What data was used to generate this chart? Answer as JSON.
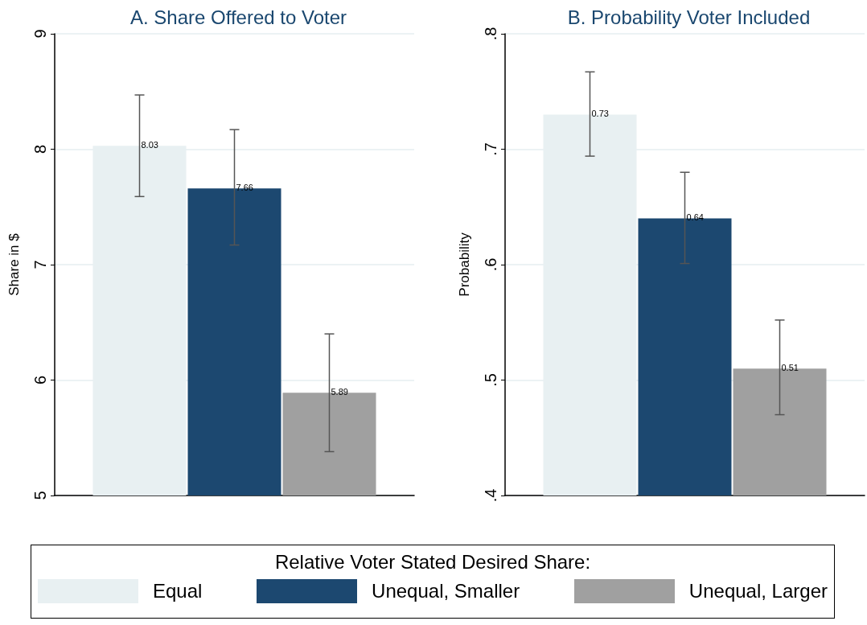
{
  "chart_data": [
    {
      "type": "bar",
      "title": "A. Share Offered to Voter",
      "ylabel": "Share in $",
      "categories": [
        null
      ],
      "series": [
        {
          "name": "Equal",
          "color": "#e8f0f2",
          "values": [
            8.03
          ],
          "errors": [
            [
              7.59,
              8.47
            ]
          ]
        },
        {
          "name": "Unequal, Smaller",
          "color": "#1c4870",
          "values": [
            7.66
          ],
          "errors": [
            [
              7.17,
              8.17
            ]
          ]
        },
        {
          "name": "Unequal, Larger",
          "color": "#a0a0a0",
          "values": [
            5.89
          ],
          "errors": [
            [
              5.38,
              6.4
            ]
          ]
        }
      ],
      "ylim": [
        5,
        9
      ],
      "yticks": [
        5,
        6,
        7,
        8,
        9
      ],
      "grid": "y",
      "data_labels": true,
      "legend": "bottom",
      "legend_title": "Relative Voter Stated Desired Share:"
    },
    {
      "type": "bar",
      "title": "B. Probability Voter Included",
      "ylabel": "Probability",
      "categories": [
        null
      ],
      "series": [
        {
          "color": "#e8f0f2",
          "values": [
            0.73
          ],
          "errors": [
            [
              0.694,
              0.767
            ]
          ]
        },
        {
          "color": "#1c4870",
          "values": [
            0.64
          ],
          "errors": [
            [
              0.601,
              0.68
            ]
          ]
        },
        {
          "color": "#a0a0a0",
          "values": [
            0.51
          ],
          "errors": [
            [
              0.47,
              0.552
            ]
          ]
        }
      ],
      "ylim": [
        0.4,
        0.8
      ],
      "yticks": [
        {
          "value": 0.4,
          "label": ".4"
        },
        {
          "value": 0.5,
          "label": ".5"
        },
        {
          "value": 0.6,
          "label": ".6"
        },
        {
          "value": 0.7,
          "label": ".7"
        },
        {
          "value": 0.8,
          "label": ".8"
        }
      ],
      "grid": "y",
      "data_labels": true
    }
  ]
}
